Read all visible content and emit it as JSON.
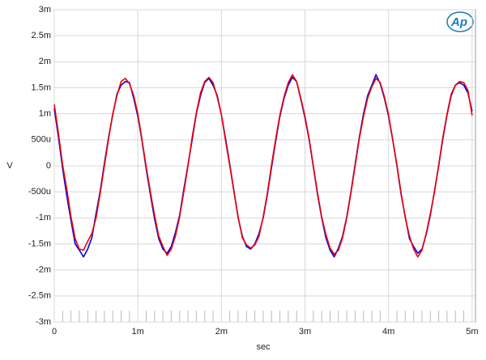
{
  "chart_data": {
    "type": "line",
    "x_label": "sec",
    "y_label": "V",
    "logo": "Ap",
    "xlim": [
      0,
      0.00504
    ],
    "ylim": [
      -0.003,
      0.003
    ],
    "xticks": [
      0,
      {
        "value": 0.001,
        "label": "1m"
      },
      {
        "value": 0.002,
        "label": "2m"
      },
      {
        "value": 0.003,
        "label": "3m"
      },
      {
        "value": 0.004,
        "label": "4m"
      },
      {
        "value": 0.005,
        "label": "5m"
      }
    ],
    "xminorticks": [
      0.0001,
      0.0002,
      0.0003,
      0.0004,
      0.0005,
      0.0006,
      0.0007,
      0.0008,
      0.0009,
      0.0011,
      0.0012,
      0.0013,
      0.0014,
      0.0015,
      0.0016,
      0.0017,
      0.0018,
      0.0019,
      0.0021,
      0.0022,
      0.0023,
      0.0024,
      0.0025,
      0.0026,
      0.0027,
      0.0028,
      0.0029,
      0.0031,
      0.0032,
      0.0033,
      0.0034,
      0.0035,
      0.0036,
      0.0037,
      0.0038,
      0.0039,
      0.0041,
      0.0042,
      0.0043,
      0.0044,
      0.0045,
      0.0046,
      0.0047,
      0.0048,
      0.0049
    ],
    "yticks": [
      {
        "value": 0.003,
        "label": "3m"
      },
      {
        "value": 0.0025,
        "label": "2.5m"
      },
      {
        "value": 0.002,
        "label": "2m"
      },
      {
        "value": 0.0015,
        "label": "1.5m"
      },
      {
        "value": 0.001,
        "label": "1m"
      },
      {
        "value": 0.0005,
        "label": "500u"
      },
      0,
      {
        "value": -0.0005,
        "label": "-500u"
      },
      {
        "value": -0.001,
        "label": "-1m"
      },
      {
        "value": -0.0015,
        "label": "-1.5m"
      },
      {
        "value": -0.002,
        "label": "-2m"
      },
      {
        "value": -0.0025,
        "label": "-2.5m"
      },
      {
        "value": -0.003,
        "label": "-3m"
      }
    ],
    "grid": true,
    "x": [
      0,
      5e-05,
      0.0001,
      0.00015,
      0.0002,
      0.00025,
      0.0003,
      0.00035,
      0.0004,
      0.00045,
      0.0005,
      0.00055,
      0.0006,
      0.00065,
      0.0007,
      0.00075,
      0.0008,
      0.00085,
      0.0009,
      0.00095,
      0.001,
      0.00105,
      0.0011,
      0.00115,
      0.0012,
      0.00125,
      0.0013,
      0.00135,
      0.0014,
      0.00145,
      0.0015,
      0.00155,
      0.0016,
      0.00165,
      0.0017,
      0.00175,
      0.0018,
      0.00185,
      0.0019,
      0.00195,
      0.002,
      0.00205,
      0.0021,
      0.00215,
      0.0022,
      0.00225,
      0.0023,
      0.00235,
      0.0024,
      0.00245,
      0.0025,
      0.00255,
      0.0026,
      0.00265,
      0.0027,
      0.00275,
      0.0028,
      0.00285,
      0.0029,
      0.00295,
      0.003,
      0.00305,
      0.0031,
      0.00315,
      0.0032,
      0.00325,
      0.0033,
      0.00335,
      0.0034,
      0.00345,
      0.0035,
      0.00355,
      0.0036,
      0.00365,
      0.0037,
      0.00375,
      0.0038,
      0.00385,
      0.0039,
      0.00395,
      0.004,
      0.00405,
      0.0041,
      0.00415,
      0.0042,
      0.00425,
      0.0043,
      0.00435,
      0.0044,
      0.00445,
      0.0045,
      0.00455,
      0.0046,
      0.00465,
      0.0047,
      0.00475,
      0.0048,
      0.00485,
      0.0049,
      0.00495,
      0.005
    ],
    "series": [
      {
        "color": "#0000ee",
        "values": [
          0.0011,
          0.00055,
          -5e-05,
          -0.00058,
          -0.00105,
          -0.0015,
          -0.00162,
          -0.00175,
          -0.0016,
          -0.00138,
          -0.00092,
          -0.00048,
          5e-05,
          0.00055,
          0.00098,
          0.00138,
          0.00155,
          0.00162,
          0.0016,
          0.0013,
          0.00095,
          0.00048,
          -6e-05,
          -0.00055,
          -0.00102,
          -0.0014,
          -0.0016,
          -0.00168,
          -0.00155,
          -0.00128,
          -0.00095,
          -0.00045,
          2e-05,
          0.0005,
          0.001,
          0.00135,
          0.0016,
          0.00168,
          0.00155,
          0.00135,
          0.00098,
          0.00052,
          3e-05,
          -0.00048,
          -0.001,
          -0.00135,
          -0.00155,
          -0.0016,
          -0.0015,
          -0.0013,
          -0.001,
          -0.00055,
          -3e-05,
          0.00048,
          0.00095,
          0.0013,
          0.00155,
          0.0017,
          0.00162,
          0.00128,
          0.00092,
          0.0005,
          -2e-05,
          -0.00055,
          -0.001,
          -0.00138,
          -0.00162,
          -0.00175,
          -0.00158,
          -0.00135,
          -0.00098,
          -0.0005,
          3e-05,
          0.00055,
          0.001,
          0.00135,
          0.00155,
          0.00175,
          0.00158,
          0.0013,
          0.00095,
          0.0005,
          0,
          -0.00055,
          -0.00098,
          -0.0014,
          -0.00155,
          -0.00168,
          -0.0016,
          -0.00132,
          -0.00095,
          -0.00048,
          0,
          0.00052,
          0.00098,
          0.00135,
          0.00155,
          0.0016,
          0.00155,
          0.0014,
          0.00105
        ]
      },
      {
        "color": "#ee0000",
        "values": [
          0.00118,
          0.00062,
          2e-05,
          -0.00045,
          -0.00098,
          -0.0014,
          -0.0016,
          -0.00162,
          -0.00145,
          -0.0013,
          -0.001,
          -0.00052,
          0,
          0.00052,
          0.001,
          0.00135,
          0.00162,
          0.00168,
          0.00158,
          0.00135,
          0.001,
          0.0005,
          -2e-05,
          -0.0005,
          -0.00095,
          -0.00135,
          -0.00155,
          -0.00172,
          -0.0016,
          -0.00135,
          -0.00098,
          -0.0005,
          0,
          0.00055,
          0.00102,
          0.0014,
          0.00162,
          0.0017,
          0.0016,
          0.00132,
          0.00098,
          0.00048,
          0,
          -0.0005,
          -0.00098,
          -0.00138,
          -0.00152,
          -0.00158,
          -0.00152,
          -0.00135,
          -0.00098,
          -0.00052,
          2e-05,
          0.00052,
          0.00098,
          0.00133,
          0.0016,
          0.00175,
          0.00162,
          0.0013,
          0.00095,
          0.00052,
          0,
          -0.00052,
          -0.00098,
          -0.00132,
          -0.00158,
          -0.0017,
          -0.00162,
          -0.00138,
          -0.001,
          -0.00052,
          0,
          0.00052,
          0.00095,
          0.0013,
          0.00152,
          0.00168,
          0.0016,
          0.00133,
          0.00098,
          0.0005,
          2e-05,
          -0.00052,
          -0.001,
          -0.00135,
          -0.0016,
          -0.00175,
          -0.00162,
          -0.0013,
          -0.00092,
          -0.0005,
          2e-05,
          0.00055,
          0.001,
          0.00138,
          0.00155,
          0.00162,
          0.0016,
          0.00145,
          0.00097
        ]
      }
    ]
  }
}
